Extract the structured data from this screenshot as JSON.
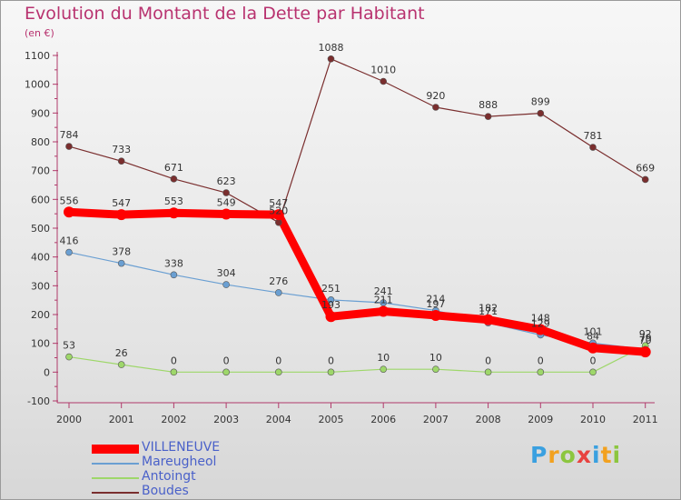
{
  "chart_data": {
    "type": "line",
    "title": "Evolution du Montant de la Dette par Habitant",
    "subtitle": "(en €)",
    "xlabel": "",
    "ylabel": "",
    "x": [
      "2000",
      "2001",
      "2002",
      "2003",
      "2004",
      "2005",
      "2006",
      "2007",
      "2008",
      "2009",
      "2010",
      "2011"
    ],
    "ylim": [
      -100,
      1100
    ],
    "yticks": [
      "-100",
      "0",
      "100",
      "200",
      "300",
      "400",
      "500",
      "600",
      "700",
      "800",
      "900",
      "1000",
      "1100"
    ],
    "grid": false,
    "legend_position": "bottom-left",
    "series": [
      {
        "name": "VILLENEUVE",
        "color": "#ff0000",
        "values": [
          556,
          547,
          553,
          549,
          547,
          193,
          211,
          197,
          182,
          148,
          84,
          70
        ],
        "labels": [
          "556",
          "547",
          "553",
          "549",
          "547",
          "193",
          "211",
          "197",
          "182",
          "148",
          "84",
          "70"
        ]
      },
      {
        "name": "Mareugheol",
        "color": "#6a9fd2",
        "values": [
          416,
          378,
          338,
          304,
          276,
          251,
          241,
          214,
          171,
          129,
          101,
          79
        ],
        "labels": [
          "416",
          "378",
          "338",
          "304",
          "276",
          "251",
          "241",
          "214",
          "171",
          "129",
          "101",
          "79"
        ]
      },
      {
        "name": "Antoingt",
        "color": "#9ed76a",
        "values": [
          53,
          26,
          0,
          0,
          0,
          0,
          10,
          10,
          0,
          0,
          0,
          92
        ],
        "labels": [
          "53",
          "26",
          "0",
          "0",
          "0",
          "0",
          "10",
          "10",
          "0",
          "0",
          "0",
          "92"
        ]
      },
      {
        "name": "Boudes",
        "color": "#7a2e2e",
        "values": [
          784,
          733,
          671,
          623,
          520,
          1088,
          1010,
          920,
          888,
          899,
          781,
          669
        ],
        "labels": [
          "784",
          "733",
          "671",
          "623",
          "520",
          "1088",
          "1010",
          "920",
          "888",
          "899",
          "781",
          "669"
        ]
      }
    ]
  },
  "logo": {
    "letters": [
      "P",
      "r",
      "o",
      "x",
      "i",
      "t",
      "i"
    ]
  }
}
